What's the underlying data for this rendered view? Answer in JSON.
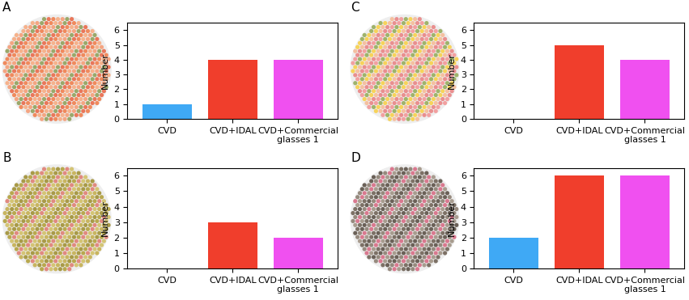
{
  "chart_data": [
    {
      "type": "bar",
      "title": "A",
      "y_label": "Number",
      "categories": [
        "CVD",
        "CVD+IDAL",
        "CVD+Commercial\nglasses 1"
      ],
      "values": [
        1,
        4,
        4
      ],
      "colors": [
        "#3fa9f5",
        "#f03e2c",
        "#f050f0"
      ],
      "ylim": [
        0,
        6.5
      ],
      "yticks": [
        0,
        1,
        2,
        3,
        4,
        5,
        6
      ],
      "grid": false
    },
    {
      "type": "bar",
      "title": "B",
      "y_label": "Number",
      "categories": [
        "CVD",
        "CVD+IDAL",
        "CVD+Commercial\nglasses 1"
      ],
      "values": [
        0,
        3,
        2
      ],
      "colors": [
        "#3fa9f5",
        "#f03e2c",
        "#f050f0"
      ],
      "ylim": [
        0,
        6.5
      ],
      "yticks": [
        0,
        1,
        2,
        3,
        4,
        5,
        6
      ],
      "grid": false
    },
    {
      "type": "bar",
      "title": "C",
      "y_label": "Number",
      "categories": [
        "CVD",
        "CVD+IDAL",
        "CVD+Commercial\nglasses 1"
      ],
      "values": [
        0,
        5,
        4
      ],
      "colors": [
        "#3fa9f5",
        "#f03e2c",
        "#f050f0"
      ],
      "ylim": [
        0,
        6.5
      ],
      "yticks": [
        0,
        1,
        2,
        3,
        4,
        5,
        6
      ],
      "grid": false
    },
    {
      "type": "bar",
      "title": "D",
      "y_label": "Number",
      "categories": [
        "CVD",
        "CVD+IDAL",
        "CVD+Commercial\nglasses 1"
      ],
      "values": [
        2,
        6,
        6
      ],
      "colors": [
        "#3fa9f5",
        "#f03e2c",
        "#f050f0"
      ],
      "ylim": [
        0,
        6.5
      ],
      "yticks": [
        0,
        1,
        2,
        3,
        4,
        5,
        6
      ],
      "grid": false
    }
  ]
}
